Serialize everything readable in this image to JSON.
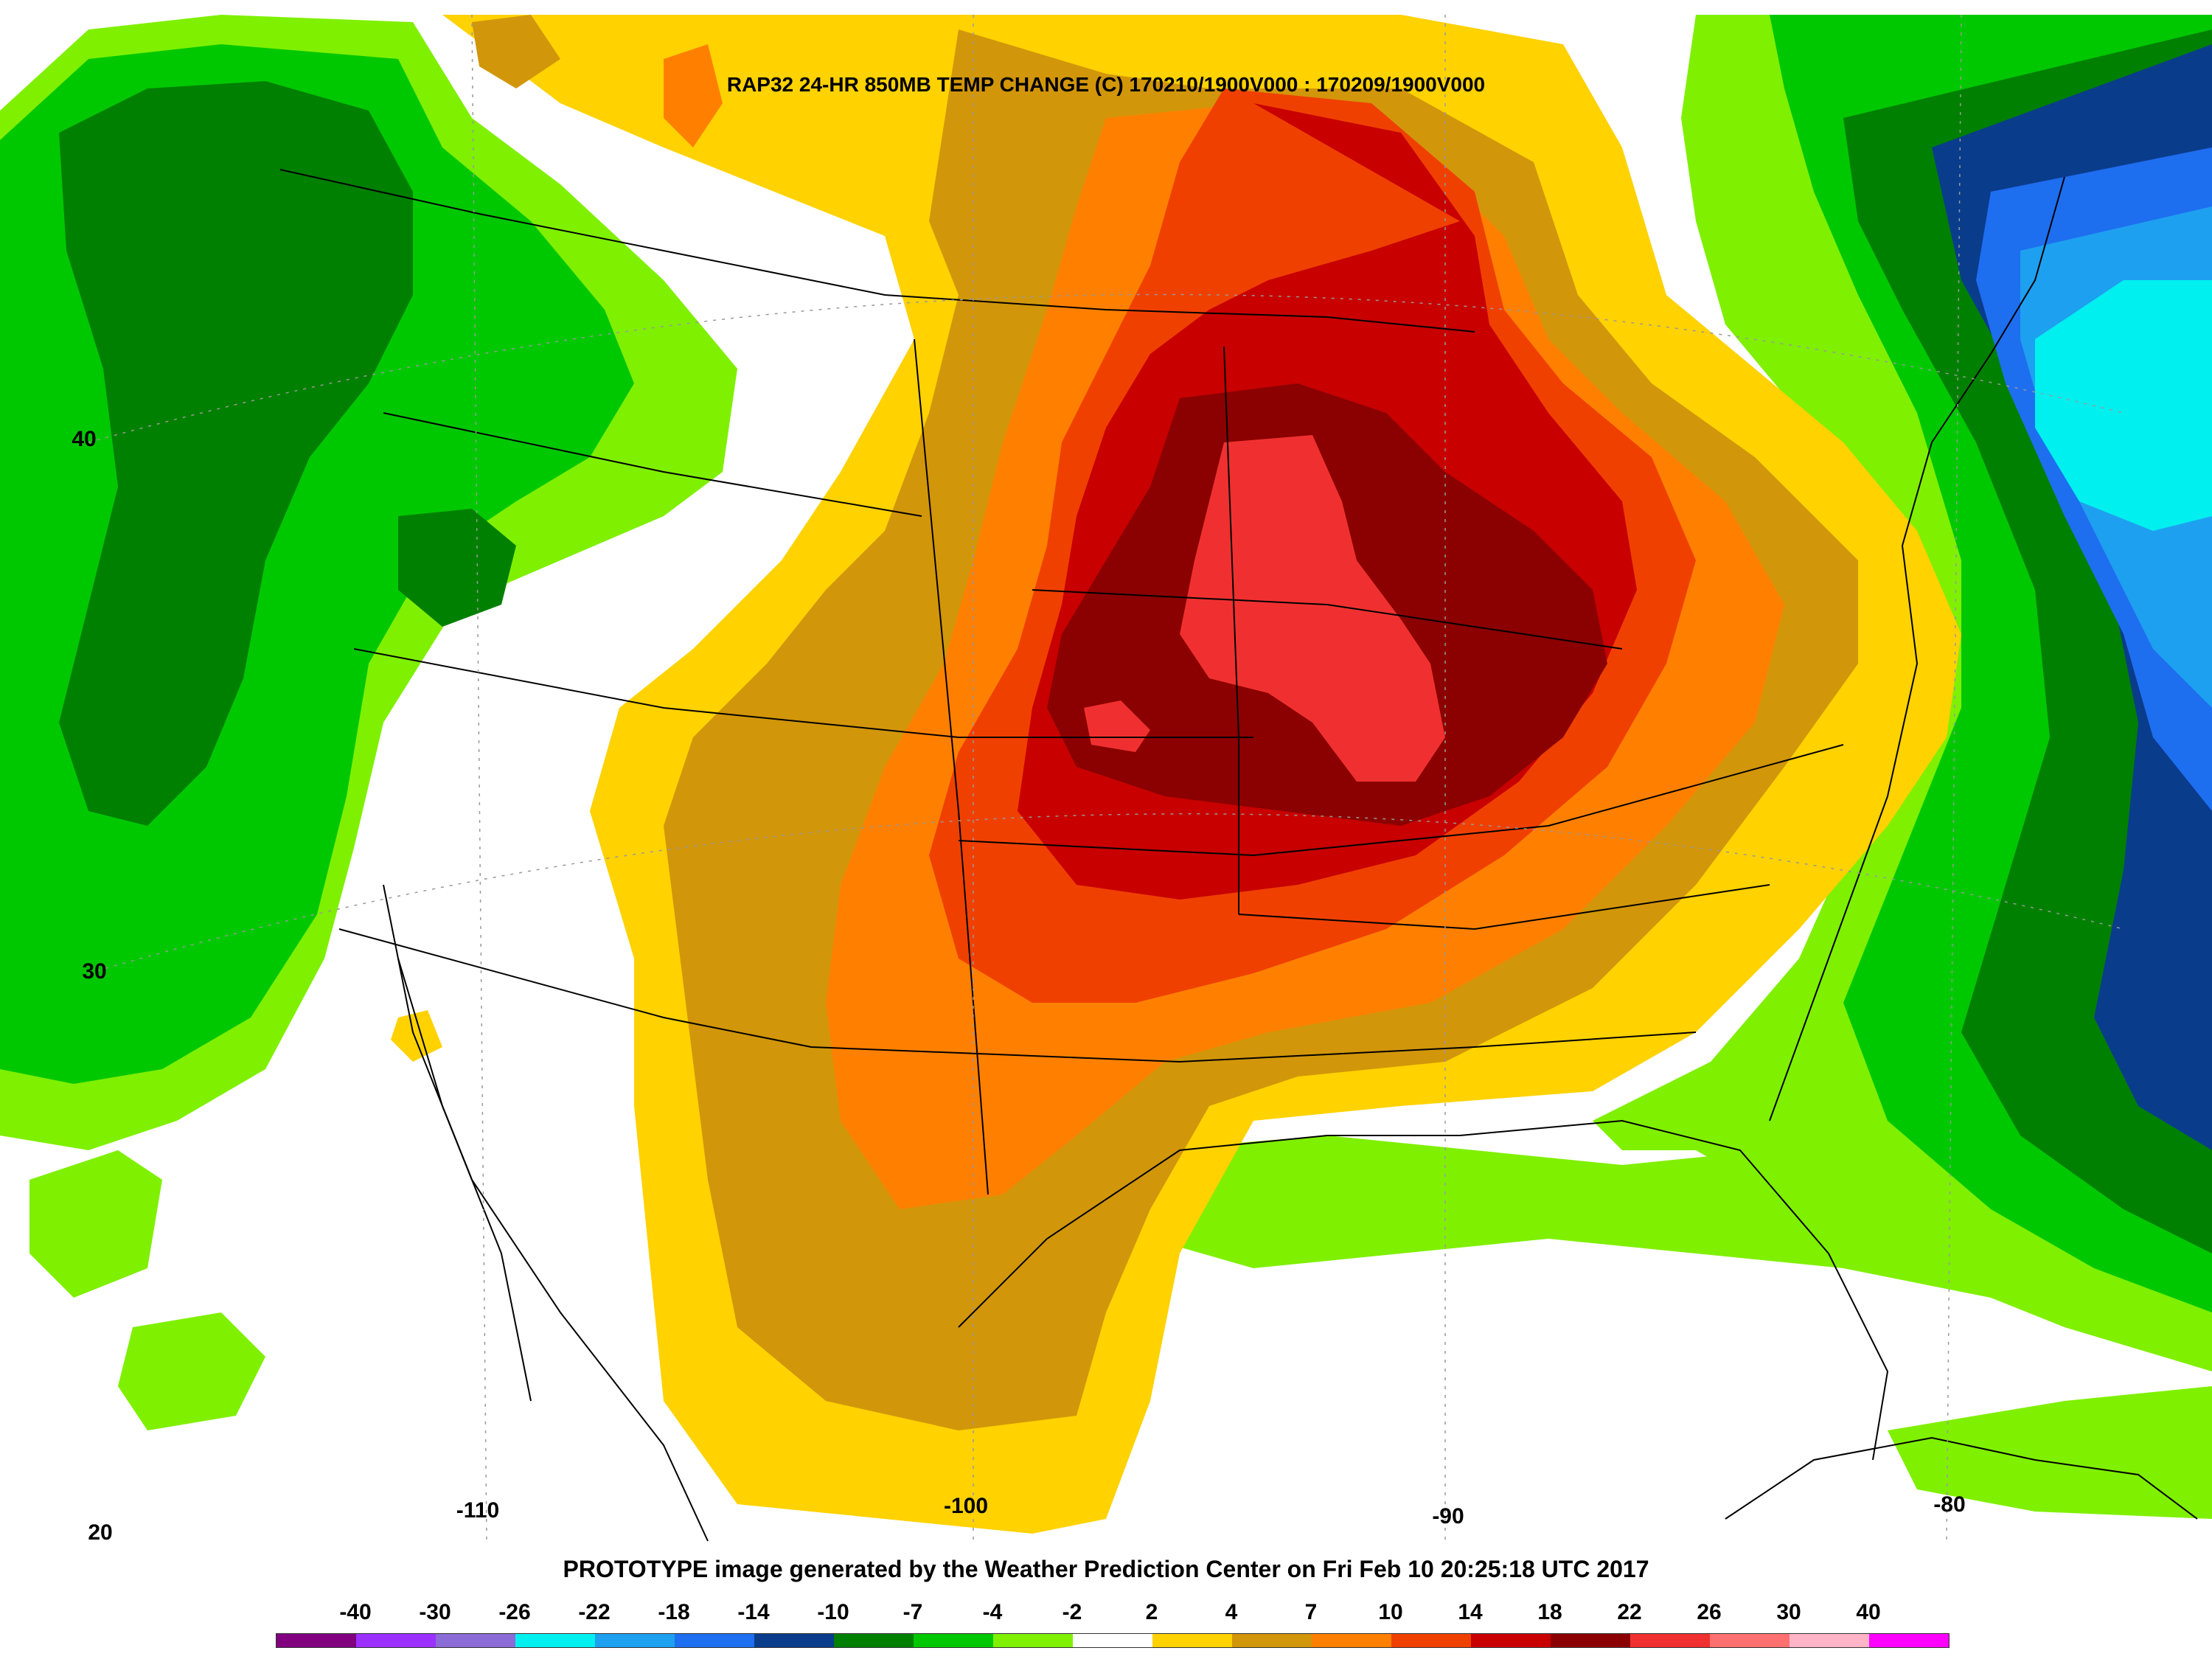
{
  "title": "RAP32 24-HR 850MB TEMP CHANGE (C) 170210/1900V000 : 170209/1900V000",
  "credit": "PROTOTYPE image generated by the Weather Prediction Center on Fri Feb 10 20:25:18 UTC 2017",
  "latitude_labels": [
    "40",
    "30",
    "20"
  ],
  "longitude_labels": [
    "-110",
    "-100",
    "-90",
    "-80"
  ],
  "legend": {
    "labels": [
      "-40",
      "-30",
      "-26",
      "-22",
      "-18",
      "-14",
      "-10",
      "-7",
      "-4",
      "-2",
      "2",
      "4",
      "7",
      "10",
      "14",
      "18",
      "22",
      "26",
      "30",
      "40"
    ],
    "colors": [
      "#800080",
      "#9b30ff",
      "#8b6bd6",
      "#00f0f0",
      "#1ea0f0",
      "#1e6ef0",
      "#0a3c8c",
      "#008000",
      "#00c800",
      "#7ff000",
      "#ffffff",
      "#ffd200",
      "#d2960a",
      "#ff8000",
      "#f04000",
      "#c80000",
      "#8b0000",
      "#f03030",
      "#ff7070",
      "#ffb4c8",
      "#ff00ff"
    ]
  }
}
